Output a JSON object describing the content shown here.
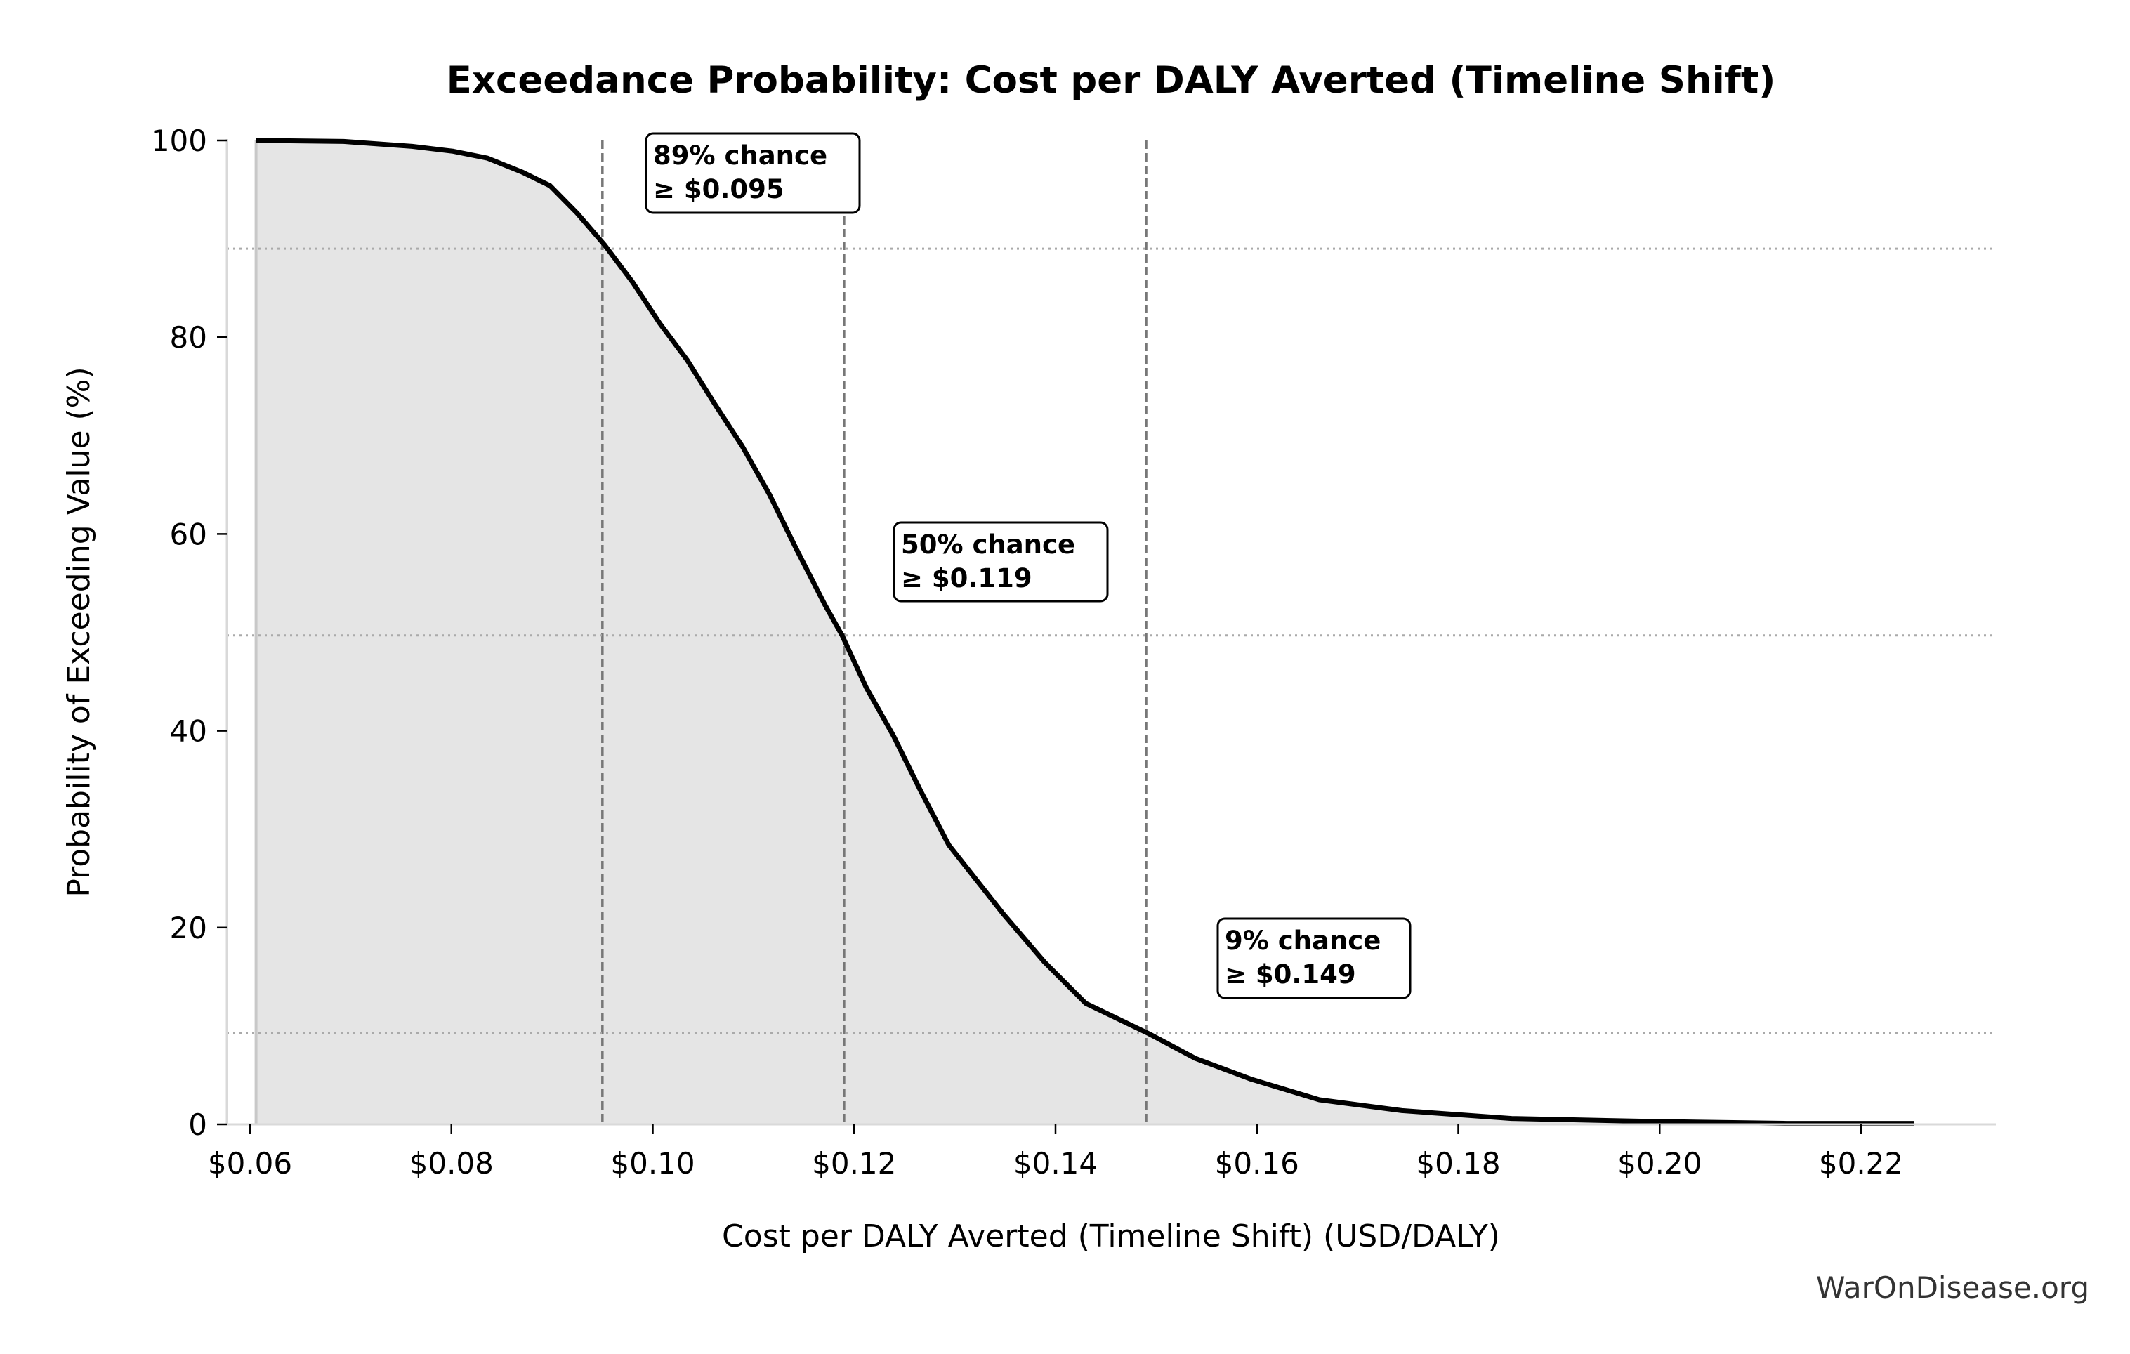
{
  "chart_data": {
    "type": "area",
    "title": "Exceedance Probability: Cost per DALY Averted (Timeline Shift)",
    "xlabel": "Cost per DALY Averted (Timeline Shift) (USD/DALY)",
    "ylabel": "Probability of Exceeding Value (%)",
    "xlim": [
      0.0578,
      0.2335
    ],
    "ylim": [
      0,
      100
    ],
    "x_ticks": [
      0.06,
      0.08,
      0.1,
      0.12,
      0.14,
      0.16,
      0.18,
      0.2,
      0.22
    ],
    "x_tick_labels": [
      "$0.06",
      "$0.08",
      "$0.10",
      "$0.12",
      "$0.14",
      "$0.16",
      "$0.18",
      "$0.20",
      "$0.22"
    ],
    "y_ticks": [
      0,
      20,
      40,
      60,
      80,
      100
    ],
    "y_tick_labels": [
      "0",
      "20",
      "40",
      "60",
      "80",
      "100"
    ],
    "grid": false,
    "series": [
      {
        "name": "Exceedance probability",
        "x": [
          0.0606,
          0.0693,
          0.0761,
          0.0802,
          0.0836,
          0.087,
          0.0898,
          0.0925,
          0.0952,
          0.098,
          0.1007,
          0.1034,
          0.1061,
          0.1089,
          0.1116,
          0.1143,
          0.1171,
          0.1188,
          0.1212,
          0.1239,
          0.1266,
          0.1294,
          0.1321,
          0.1348,
          0.1389,
          0.143,
          0.1493,
          0.1539,
          0.1594,
          0.1662,
          0.1744,
          0.1853,
          0.199,
          0.2126,
          0.2253
        ],
        "y": [
          100,
          99.9,
          99.4,
          98.9,
          98.2,
          96.8,
          95.4,
          92.6,
          89.4,
          85.6,
          81.4,
          77.7,
          73.3,
          68.9,
          64.0,
          58.4,
          52.8,
          49.7,
          44.4,
          39.5,
          33.9,
          28.4,
          24.9,
          21.4,
          16.5,
          12.3,
          9.2,
          6.7,
          4.6,
          2.5,
          1.4,
          0.6,
          0.3,
          0.1,
          0.1
        ]
      }
    ],
    "annotations": [
      {
        "line1": "89% chance",
        "line2": "≥ $0.095",
        "x": 0.095,
        "p": 89
      },
      {
        "line1": "50% chance",
        "line2": "≥ $0.119",
        "x": 0.119,
        "p": 49.7
      },
      {
        "line1": "9% chance",
        "line2": "≥ $0.149",
        "x": 0.149,
        "p": 9.3
      }
    ],
    "colors": {
      "line": "#000000",
      "fill": "#e5e5e5",
      "ref": "#777777",
      "dotted": "#aaaaaa"
    }
  },
  "footer": {
    "credit": "WarOnDisease.org"
  }
}
